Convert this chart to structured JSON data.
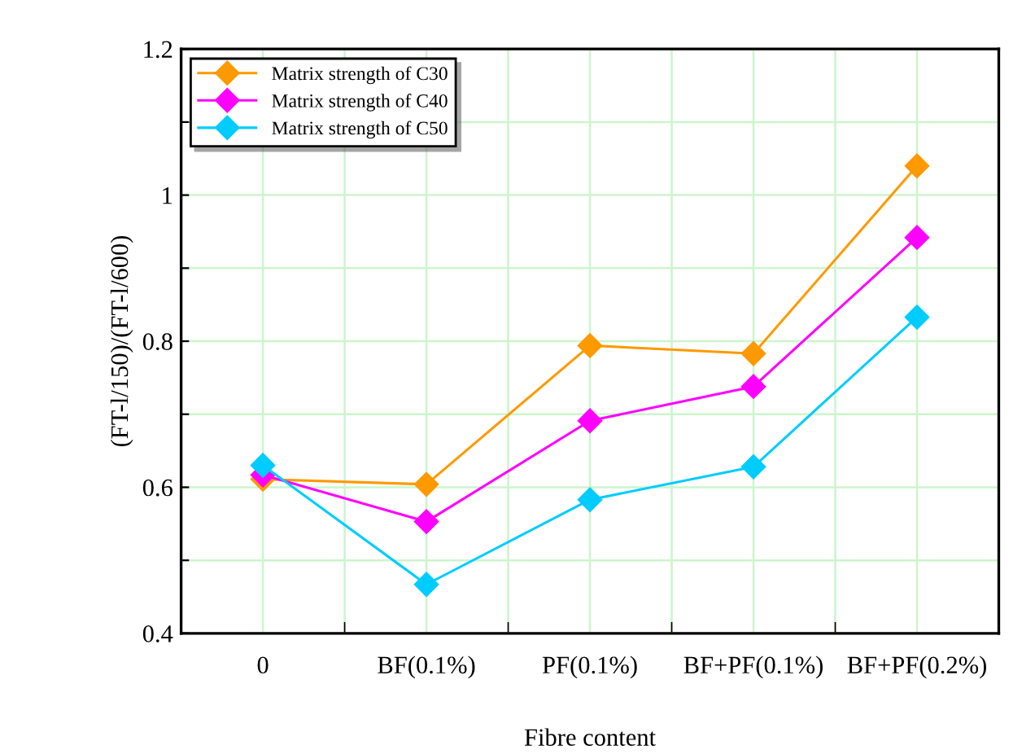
{
  "chart_data": {
    "type": "line",
    "xlabel": "Fibre content",
    "ylabel": "(FT-l/150)/(FT-l/600)",
    "categories": [
      "0",
      "BF(0.1%)",
      "PF(0.1%)",
      "BF+PF(0.1%)",
      "BF+PF(0.2%)"
    ],
    "series": [
      {
        "name": "Matrix strength of C30",
        "color": "#ff9900",
        "values": [
          0.611,
          0.604,
          0.794,
          0.783,
          1.04
        ]
      },
      {
        "name": "Matrix strength of C40",
        "color": "#ff00ff",
        "values": [
          0.617,
          0.553,
          0.691,
          0.738,
          0.942
        ]
      },
      {
        "name": "Matrix strength of C50",
        "color": "#00ccff",
        "values": [
          0.63,
          0.467,
          0.583,
          0.628,
          0.833
        ]
      }
    ],
    "ylim": [
      0.4,
      1.2
    ],
    "yticks": [
      0.4,
      {
        "value": 0.5,
        "label": null
      },
      0.6,
      {
        "value": 0.7,
        "label": null
      },
      0.8,
      {
        "value": 0.9,
        "label": null
      },
      {
        "value": 1.0,
        "label": "1"
      },
      {
        "value": 1.1,
        "label": null
      },
      1.2
    ],
    "grid": true,
    "legend": "top left",
    "marker": "diamond",
    "line_style": "solid"
  }
}
